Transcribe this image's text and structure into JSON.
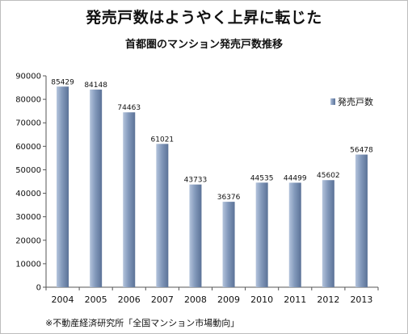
{
  "title": "発売戸数はようやく上昇に転じた",
  "subtitle": "首都圏のマンション発売戸数推移",
  "note": "※不動産経済研究所「全国マンション市場動向」",
  "colors": {
    "bar_light": "#b4c4dc",
    "bar_mid": "#8399bb",
    "bar_dark": "#5b7297",
    "axis": "#555555",
    "frame": "#bdbdbd"
  },
  "chart_data": {
    "type": "bar",
    "categories": [
      "2004",
      "2005",
      "2006",
      "2007",
      "2008",
      "2009",
      "2010",
      "2011",
      "2012",
      "2013"
    ],
    "series": [
      {
        "name": "発売戸数",
        "values": [
          85429,
          84148,
          74463,
          61021,
          43733,
          36376,
          44535,
          44499,
          45602,
          56478
        ]
      }
    ],
    "data_labels": [
      "85429",
      "84148",
      "74463",
      "61021",
      "43733",
      "36376",
      "44535",
      "44499",
      "45602",
      "56478"
    ],
    "ylim": [
      0,
      90000
    ],
    "yticks": [
      0,
      10000,
      20000,
      30000,
      40000,
      50000,
      60000,
      70000,
      80000,
      90000
    ],
    "ytick_labels": [
      "0",
      "10000",
      "20000",
      "30000",
      "40000",
      "50000",
      "60000",
      "70000",
      "80000",
      "90000"
    ],
    "legend_position": "right",
    "grid": false
  }
}
